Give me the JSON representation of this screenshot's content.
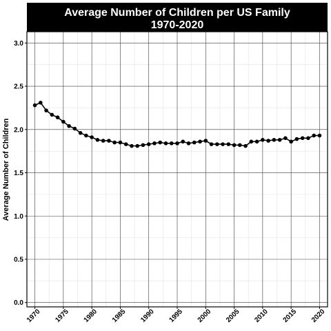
{
  "chart_data": {
    "type": "line",
    "title": "Average Number of Children per US Family",
    "subtitle": "1970-2020",
    "xlabel": "",
    "ylabel": "Average Number of Children",
    "xlim": [
      1968.6,
      2021.4
    ],
    "ylim": [
      -0.05,
      3.13
    ],
    "x_ticks": [
      1970,
      1975,
      1980,
      1985,
      1990,
      1995,
      2000,
      2005,
      2010,
      2015,
      2020
    ],
    "x_tick_labels": [
      "1970",
      "1975",
      "1980",
      "1985",
      "1990",
      "1995",
      "2000",
      "2005",
      "2010",
      "2015",
      "2020"
    ],
    "y_ticks": [
      0.0,
      0.5,
      1.0,
      1.5,
      2.0,
      2.5,
      3.0
    ],
    "y_tick_labels": [
      "0.0",
      "0.5",
      "1.0",
      "1.5",
      "2.0",
      "2.5",
      "3.0"
    ],
    "grid": true,
    "line_color": "#000000",
    "title_background": "#000000",
    "title_color": "#ffffff",
    "x": [
      1970,
      1971,
      1972,
      1973,
      1974,
      1975,
      1976,
      1977,
      1978,
      1979,
      1980,
      1981,
      1982,
      1983,
      1984,
      1985,
      1986,
      1987,
      1988,
      1989,
      1990,
      1991,
      1992,
      1993,
      1994,
      1995,
      1996,
      1997,
      1998,
      1999,
      2000,
      2001,
      2002,
      2003,
      2004,
      2005,
      2006,
      2007,
      2008,
      2009,
      2010,
      2011,
      2012,
      2013,
      2014,
      2015,
      2016,
      2017,
      2018,
      2019,
      2020
    ],
    "y": [
      2.28,
      2.31,
      2.22,
      2.17,
      2.14,
      2.09,
      2.04,
      2.01,
      1.96,
      1.93,
      1.91,
      1.88,
      1.87,
      1.87,
      1.85,
      1.85,
      1.83,
      1.81,
      1.81,
      1.82,
      1.83,
      1.84,
      1.85,
      1.84,
      1.84,
      1.84,
      1.86,
      1.84,
      1.85,
      1.86,
      1.87,
      1.83,
      1.83,
      1.83,
      1.83,
      1.82,
      1.82,
      1.81,
      1.86,
      1.86,
      1.88,
      1.87,
      1.88,
      1.88,
      1.9,
      1.86,
      1.89,
      1.9,
      1.9,
      1.93,
      1.93
    ]
  }
}
